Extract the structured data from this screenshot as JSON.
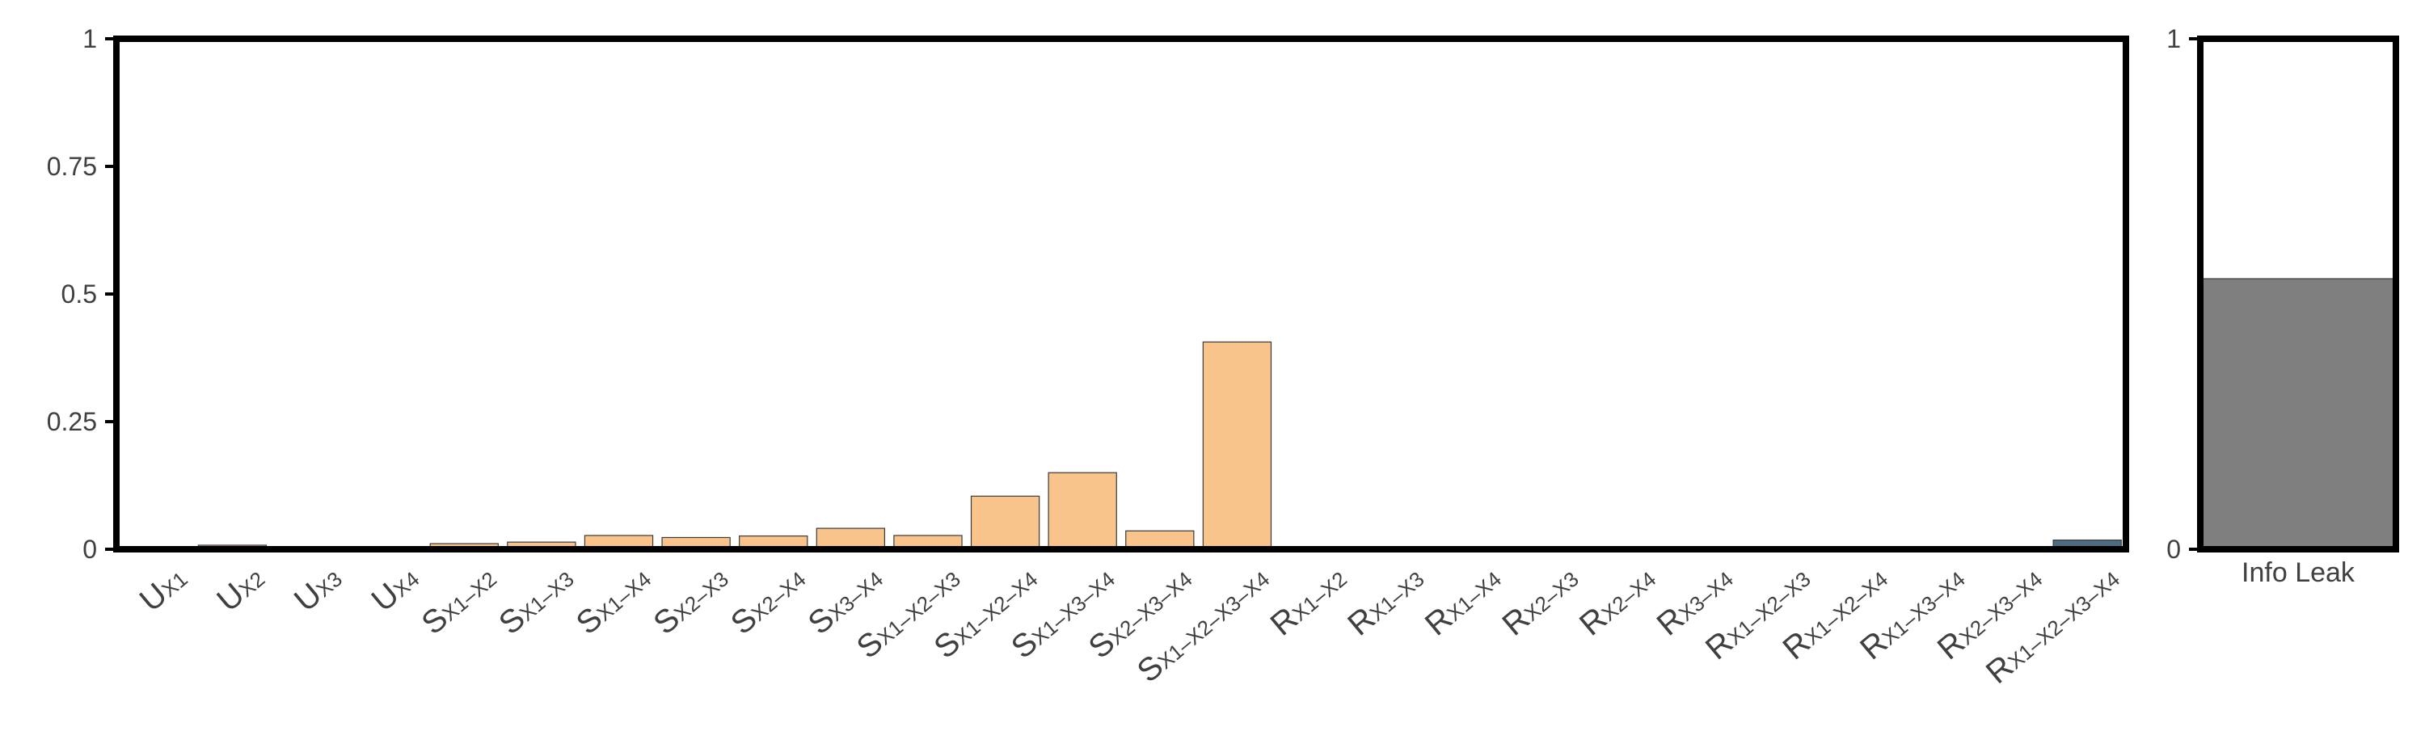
{
  "chart_data": [
    {
      "type": "bar",
      "title": "",
      "xlabel": "",
      "ylabel": "",
      "ylim": [
        0,
        1
      ],
      "yticks": [
        {
          "value": 0,
          "label": "0"
        },
        {
          "value": 0.25,
          "label": "0.25"
        },
        {
          "value": 0.5,
          "label": "0.5"
        },
        {
          "value": 0.75,
          "label": "0.75"
        },
        {
          "value": 1,
          "label": "1"
        }
      ],
      "grid": false,
      "legend": "none",
      "categories": [
        {
          "base": "U",
          "sub": "X1"
        },
        {
          "base": "U",
          "sub": "X2"
        },
        {
          "base": "U",
          "sub": "X3"
        },
        {
          "base": "U",
          "sub": "X4"
        },
        {
          "base": "S",
          "sub": "X1–X2"
        },
        {
          "base": "S",
          "sub": "X1–X3"
        },
        {
          "base": "S",
          "sub": "X1–X4"
        },
        {
          "base": "S",
          "sub": "X2–X3"
        },
        {
          "base": "S",
          "sub": "X2–X4"
        },
        {
          "base": "S",
          "sub": "X3–X4"
        },
        {
          "base": "S",
          "sub": "X1–X2–X3"
        },
        {
          "base": "S",
          "sub": "X1–X2–X4"
        },
        {
          "base": "S",
          "sub": "X1–X3–X4"
        },
        {
          "base": "S",
          "sub": "X2–X3–X4"
        },
        {
          "base": "S",
          "sub": "X1–X2–X3–X4"
        },
        {
          "base": "R",
          "sub": "X1–X2"
        },
        {
          "base": "R",
          "sub": "X1–X3"
        },
        {
          "base": "R",
          "sub": "X1–X4"
        },
        {
          "base": "R",
          "sub": "X2–X3"
        },
        {
          "base": "R",
          "sub": "X2–X4"
        },
        {
          "base": "R",
          "sub": "X3–X4"
        },
        {
          "base": "R",
          "sub": "X1–X2–X3"
        },
        {
          "base": "R",
          "sub": "X1–X2–X4"
        },
        {
          "base": "R",
          "sub": "X1–X3–X4"
        },
        {
          "base": "R",
          "sub": "X2–X3–X4"
        },
        {
          "base": "R",
          "sub": "X1–X2–X3–X4"
        }
      ],
      "values": [
        0.002,
        0.008,
        0.003,
        0.003,
        0.011,
        0.014,
        0.027,
        0.023,
        0.026,
        0.041,
        0.027,
        0.104,
        0.15,
        0.036,
        0.406,
        0.0,
        0.0,
        0.0,
        0.0,
        0.0,
        0.0,
        0.0,
        0.0,
        0.0,
        0.0,
        0.018
      ],
      "colors": {
        "unique": "#d9a0a0",
        "synergy": "#f8c48c",
        "redundancy": "#4e6c80",
        "bar_edge": "#3a3a3a",
        "axis": "#000000"
      }
    },
    {
      "type": "bar",
      "title": "",
      "xlabel": "",
      "ylabel": "",
      "ylim": [
        0,
        1
      ],
      "yticks": [
        {
          "value": 0,
          "label": "0"
        },
        {
          "value": 1,
          "label": "1"
        }
      ],
      "categories": [
        "Info Leak"
      ],
      "values": [
        0.53
      ],
      "colors": {
        "bar": "#7f7f7f",
        "bar_edge": "#3a3a3a",
        "axis": "#000000"
      }
    }
  ]
}
